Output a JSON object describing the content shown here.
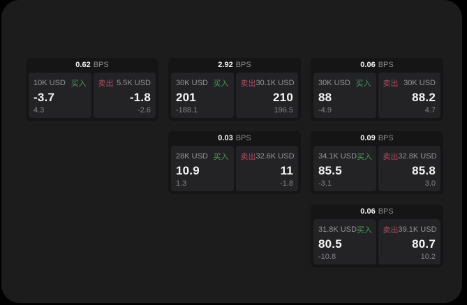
{
  "labels": {
    "bps_unit": "BPS",
    "buy": "买入",
    "sell": "卖出"
  },
  "colors": {
    "buy_green": "#3d9d64",
    "sell_red": "#b14a5e",
    "surface": "#1c1c1d",
    "card": "#151516",
    "panel": "#232325",
    "value_white": "#f5f5f5",
    "label_gray": "#96969a"
  },
  "cards": [
    {
      "row": 1,
      "col": 1,
      "bps": "0.62",
      "buy": {
        "amount": "10K USD",
        "value": "-3.7",
        "delta": "4.3"
      },
      "sell": {
        "amount": "5.5K USD",
        "value": "-1.8",
        "delta": "-2.6"
      }
    },
    {
      "row": 1,
      "col": 2,
      "bps": "2.92",
      "buy": {
        "amount": "30K USD",
        "value": "201",
        "delta": "-188.1"
      },
      "sell": {
        "amount": "30.1K USD",
        "value": "210",
        "delta": "196.5"
      }
    },
    {
      "row": 1,
      "col": 3,
      "bps": "0.06",
      "buy": {
        "amount": "30K USD",
        "value": "88",
        "delta": "-4.9"
      },
      "sell": {
        "amount": "30K USD",
        "value": "88.2",
        "delta": "4.7"
      }
    },
    {
      "row": 2,
      "col": 2,
      "bps": "0.03",
      "buy": {
        "amount": "28K USD",
        "value": "10.9",
        "delta": "1.3"
      },
      "sell": {
        "amount": "32.6K USD",
        "value": "11",
        "delta": "-1.8"
      }
    },
    {
      "row": 2,
      "col": 3,
      "bps": "0.09",
      "buy": {
        "amount": "34.1K USD",
        "value": "85.5",
        "delta": "-3.1"
      },
      "sell": {
        "amount": "32.8K USD",
        "value": "85.8",
        "delta": "3.0"
      }
    },
    {
      "row": 3,
      "col": 3,
      "bps": "0.06",
      "buy": {
        "amount": "31.8K USD",
        "value": "80.5",
        "delta": "-10.8"
      },
      "sell": {
        "amount": "39.1K USD",
        "value": "80.7",
        "delta": "10.2"
      }
    }
  ]
}
